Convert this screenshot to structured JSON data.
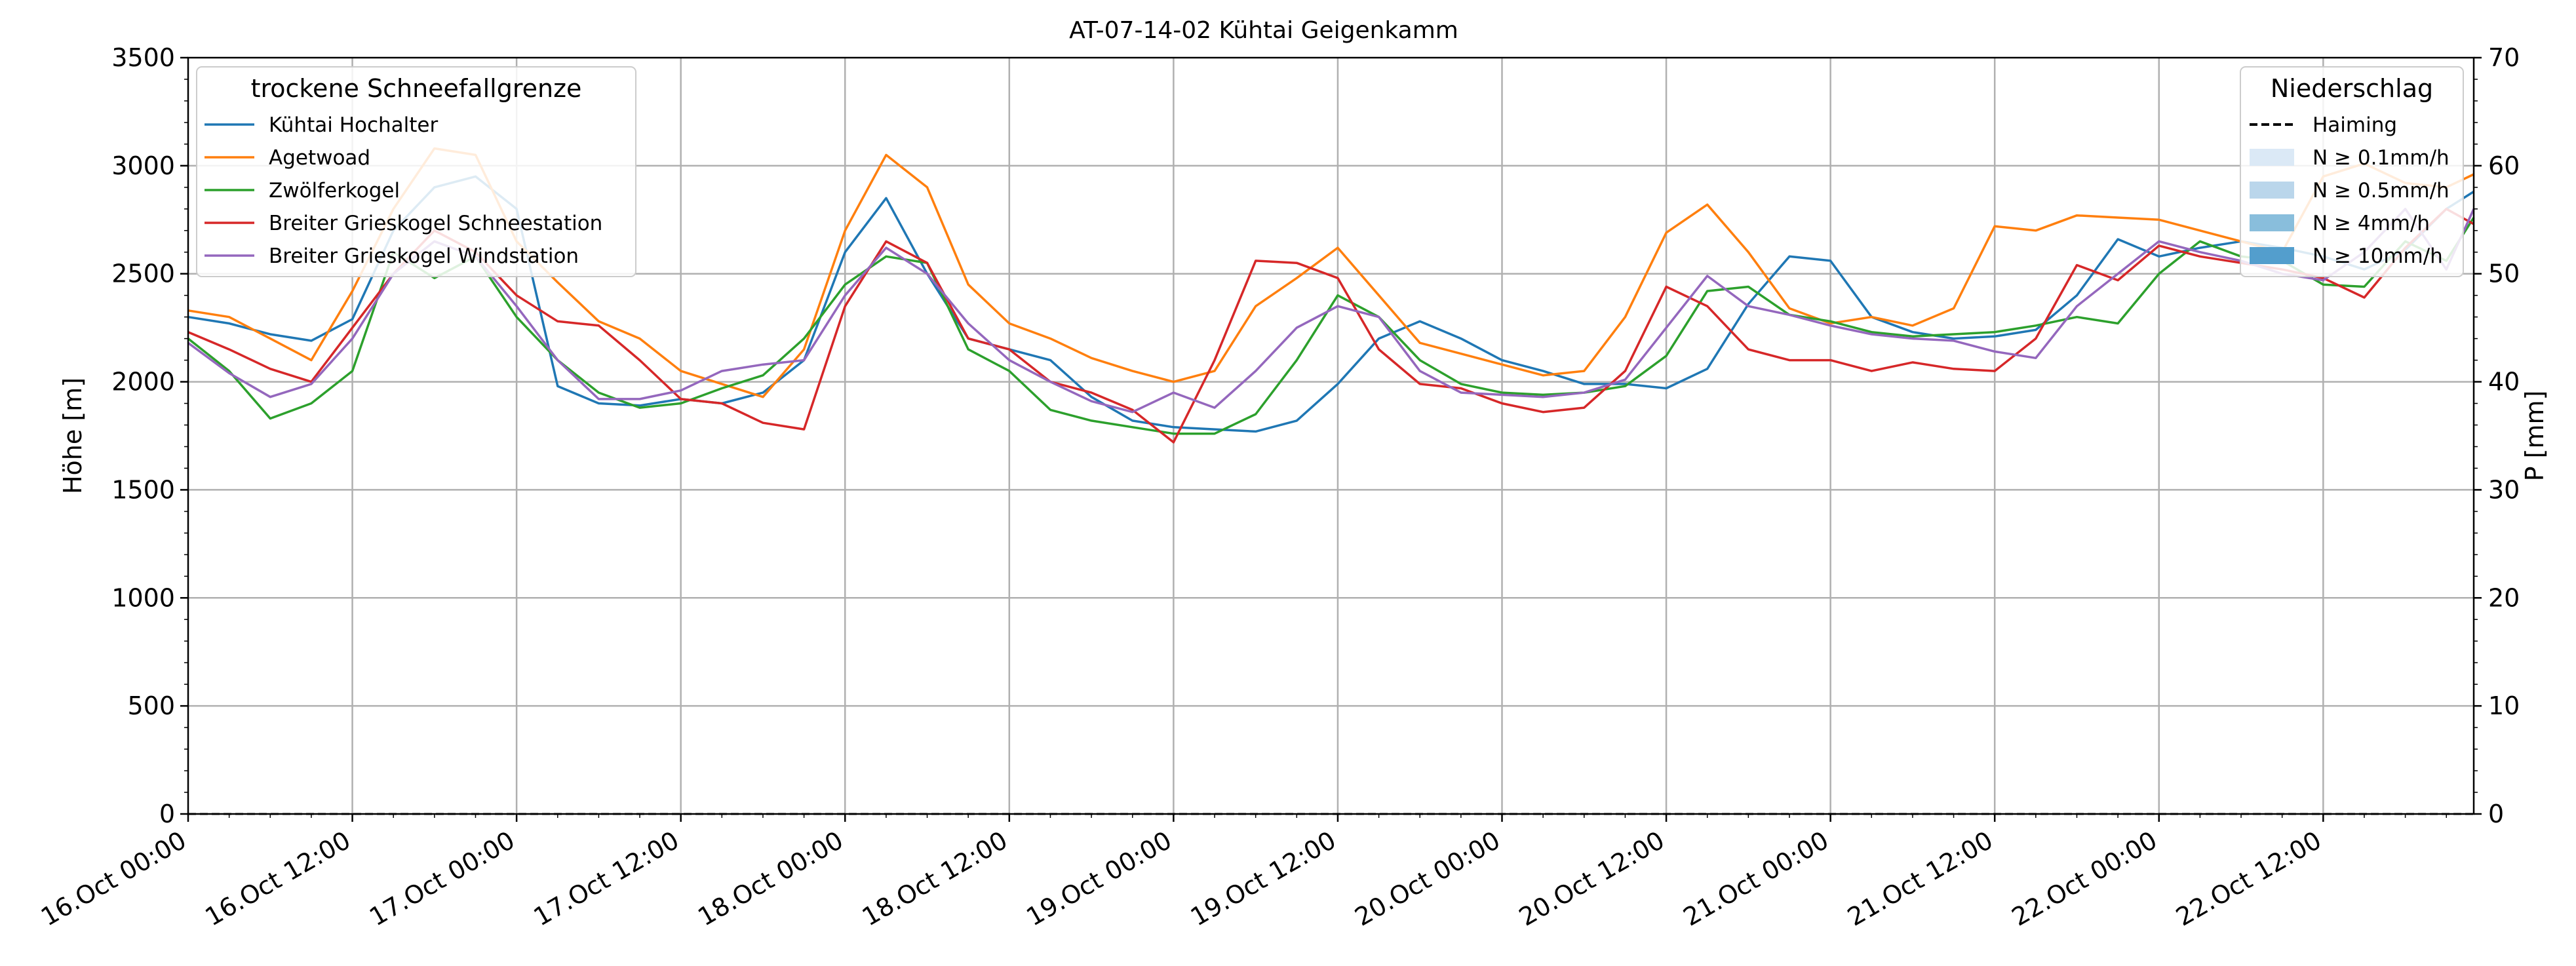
{
  "chart_data": {
    "type": "line",
    "title": "AT-07-14-02 Kühtai Geigenkamm",
    "ylabel": "Höhe [m]",
    "ylabel_right": "P [mm]",
    "ylim": [
      0,
      3500
    ],
    "ylim_right": [
      0,
      70
    ],
    "yticks": [
      "0",
      "500",
      "1000",
      "1500",
      "2000",
      "2500",
      "3000",
      "3500"
    ],
    "yticks_right": [
      "0",
      "10",
      "20",
      "30",
      "40",
      "50",
      "60",
      "70"
    ],
    "xticks": [
      "16.Oct 00:00",
      "16.Oct 12:00",
      "17.Oct 00:00",
      "17.Oct 12:00",
      "18.Oct 00:00",
      "18.Oct 12:00",
      "19.Oct 00:00",
      "19.Oct 12:00",
      "20.Oct 00:00",
      "20.Oct 12:00",
      "21.Oct 00:00",
      "21.Oct 12:00",
      "22.Oct 00:00",
      "22.Oct 12:00"
    ],
    "x_range_hours": [
      0,
      167
    ],
    "grid": true,
    "legend_left": {
      "title": "trockene Schneefallgrenze",
      "placement": "top-left"
    },
    "legend_right": {
      "title": "Niederschlag",
      "placement": "top-right",
      "entries": [
        {
          "label": "Haiming",
          "style": "dashed",
          "color": "#000000"
        },
        {
          "label": "N ≥ 0.1mm/h",
          "color": "#dbe9f6"
        },
        {
          "label": "N ≥ 0.5mm/h",
          "color": "#bad6eb"
        },
        {
          "label": "N ≥ 4mm/h",
          "color": "#89bedc"
        },
        {
          "label": "N ≥ 10mm/h",
          "color": "#539ecd"
        }
      ]
    },
    "precip_haiming_mm": [
      [
        0,
        0
      ],
      [
        167,
        0
      ]
    ],
    "series": [
      {
        "name": "Kühtai Hochalter",
        "color": "#1f77b4",
        "points": [
          [
            0,
            2300
          ],
          [
            3,
            2270
          ],
          [
            6,
            2220
          ],
          [
            9,
            2190
          ],
          [
            12,
            2290
          ],
          [
            15,
            2700
          ],
          [
            18,
            2900
          ],
          [
            21,
            2950
          ],
          [
            24,
            2800
          ],
          [
            27,
            1980
          ],
          [
            30,
            1900
          ],
          [
            33,
            1890
          ],
          [
            36,
            1920
          ],
          [
            39,
            1900
          ],
          [
            42,
            1950
          ],
          [
            45,
            2100
          ],
          [
            48,
            2600
          ],
          [
            51,
            2850
          ],
          [
            54,
            2500
          ],
          [
            57,
            2200
          ],
          [
            60,
            2150
          ],
          [
            63,
            2100
          ],
          [
            66,
            1930
          ],
          [
            69,
            1820
          ],
          [
            72,
            1790
          ],
          [
            75,
            1780
          ],
          [
            78,
            1770
          ],
          [
            81,
            1820
          ],
          [
            84,
            1990
          ],
          [
            87,
            2200
          ],
          [
            90,
            2280
          ],
          [
            93,
            2200
          ],
          [
            96,
            2100
          ],
          [
            99,
            2050
          ],
          [
            102,
            1990
          ],
          [
            105,
            1990
          ],
          [
            108,
            1970
          ],
          [
            111,
            2060
          ],
          [
            114,
            2360
          ],
          [
            117,
            2580
          ],
          [
            120,
            2560
          ],
          [
            123,
            2300
          ],
          [
            126,
            2230
          ],
          [
            129,
            2200
          ],
          [
            132,
            2210
          ],
          [
            135,
            2240
          ],
          [
            138,
            2400
          ],
          [
            141,
            2660
          ],
          [
            144,
            2580
          ],
          [
            147,
            2620
          ],
          [
            150,
            2650
          ],
          [
            153,
            2620
          ],
          [
            156,
            2580
          ],
          [
            159,
            2520
          ],
          [
            162,
            2610
          ],
          [
            165,
            2800
          ],
          [
            167,
            2880
          ]
        ]
      },
      {
        "name": "Agetwoad",
        "color": "#ff7f0e",
        "points": [
          [
            0,
            2330
          ],
          [
            3,
            2300
          ],
          [
            6,
            2200
          ],
          [
            9,
            2100
          ],
          [
            12,
            2420
          ],
          [
            15,
            2800
          ],
          [
            18,
            3080
          ],
          [
            21,
            3050
          ],
          [
            24,
            2650
          ],
          [
            27,
            2460
          ],
          [
            30,
            2280
          ],
          [
            33,
            2200
          ],
          [
            36,
            2050
          ],
          [
            39,
            1990
          ],
          [
            42,
            1930
          ],
          [
            45,
            2150
          ],
          [
            48,
            2700
          ],
          [
            51,
            3050
          ],
          [
            54,
            2900
          ],
          [
            57,
            2450
          ],
          [
            60,
            2270
          ],
          [
            63,
            2200
          ],
          [
            66,
            2110
          ],
          [
            69,
            2050
          ],
          [
            72,
            2000
          ],
          [
            75,
            2050
          ],
          [
            78,
            2350
          ],
          [
            81,
            2480
          ],
          [
            84,
            2620
          ],
          [
            87,
            2400
          ],
          [
            90,
            2180
          ],
          [
            93,
            2130
          ],
          [
            96,
            2080
          ],
          [
            99,
            2030
          ],
          [
            102,
            2050
          ],
          [
            105,
            2300
          ],
          [
            108,
            2690
          ],
          [
            111,
            2820
          ],
          [
            114,
            2600
          ],
          [
            117,
            2340
          ],
          [
            120,
            2270
          ],
          [
            123,
            2300
          ],
          [
            126,
            2260
          ],
          [
            129,
            2340
          ],
          [
            132,
            2720
          ],
          [
            135,
            2700
          ],
          [
            138,
            2770
          ],
          [
            141,
            2760
          ],
          [
            144,
            2750
          ],
          [
            147,
            2700
          ],
          [
            150,
            2650
          ],
          [
            153,
            2600
          ],
          [
            156,
            2950
          ],
          [
            159,
            3010
          ],
          [
            162,
            2920
          ],
          [
            165,
            2900
          ],
          [
            167,
            2960
          ]
        ]
      },
      {
        "name": "Zwölferkogel",
        "color": "#2ca02c",
        "points": [
          [
            0,
            2200
          ],
          [
            3,
            2050
          ],
          [
            6,
            1830
          ],
          [
            9,
            1900
          ],
          [
            12,
            2050
          ],
          [
            15,
            2600
          ],
          [
            18,
            2480
          ],
          [
            21,
            2580
          ],
          [
            24,
            2300
          ],
          [
            27,
            2100
          ],
          [
            30,
            1950
          ],
          [
            33,
            1880
          ],
          [
            36,
            1900
          ],
          [
            39,
            1970
          ],
          [
            42,
            2030
          ],
          [
            45,
            2200
          ],
          [
            48,
            2450
          ],
          [
            51,
            2580
          ],
          [
            54,
            2550
          ],
          [
            57,
            2150
          ],
          [
            60,
            2050
          ],
          [
            63,
            1870
          ],
          [
            66,
            1820
          ],
          [
            69,
            1790
          ],
          [
            72,
            1760
          ],
          [
            75,
            1760
          ],
          [
            78,
            1850
          ],
          [
            81,
            2100
          ],
          [
            84,
            2400
          ],
          [
            87,
            2300
          ],
          [
            90,
            2100
          ],
          [
            93,
            1990
          ],
          [
            96,
            1950
          ],
          [
            99,
            1940
          ],
          [
            102,
            1950
          ],
          [
            105,
            1980
          ],
          [
            108,
            2120
          ],
          [
            111,
            2420
          ],
          [
            114,
            2440
          ],
          [
            117,
            2310
          ],
          [
            120,
            2280
          ],
          [
            123,
            2230
          ],
          [
            126,
            2210
          ],
          [
            129,
            2220
          ],
          [
            132,
            2230
          ],
          [
            135,
            2260
          ],
          [
            138,
            2300
          ],
          [
            141,
            2270
          ],
          [
            144,
            2500
          ],
          [
            147,
            2650
          ],
          [
            150,
            2580
          ],
          [
            153,
            2560
          ],
          [
            156,
            2450
          ],
          [
            159,
            2440
          ],
          [
            162,
            2650
          ],
          [
            165,
            2560
          ],
          [
            167,
            2760
          ]
        ]
      },
      {
        "name": "Breiter Grieskogel Schneestation",
        "color": "#d62728",
        "points": [
          [
            0,
            2230
          ],
          [
            3,
            2150
          ],
          [
            6,
            2060
          ],
          [
            9,
            2000
          ],
          [
            12,
            2250
          ],
          [
            15,
            2500
          ],
          [
            18,
            2700
          ],
          [
            21,
            2600
          ],
          [
            24,
            2400
          ],
          [
            27,
            2280
          ],
          [
            30,
            2260
          ],
          [
            33,
            2100
          ],
          [
            36,
            1920
          ],
          [
            39,
            1900
          ],
          [
            42,
            1810
          ],
          [
            45,
            1780
          ],
          [
            48,
            2350
          ],
          [
            51,
            2650
          ],
          [
            54,
            2550
          ],
          [
            57,
            2200
          ],
          [
            60,
            2150
          ],
          [
            63,
            2000
          ],
          [
            66,
            1950
          ],
          [
            69,
            1870
          ],
          [
            72,
            1720
          ],
          [
            75,
            2100
          ],
          [
            78,
            2560
          ],
          [
            81,
            2550
          ],
          [
            84,
            2480
          ],
          [
            87,
            2150
          ],
          [
            90,
            1990
          ],
          [
            93,
            1970
          ],
          [
            96,
            1900
          ],
          [
            99,
            1860
          ],
          [
            102,
            1880
          ],
          [
            105,
            2050
          ],
          [
            108,
            2440
          ],
          [
            111,
            2350
          ],
          [
            114,
            2150
          ],
          [
            117,
            2100
          ],
          [
            120,
            2100
          ],
          [
            123,
            2050
          ],
          [
            126,
            2090
          ],
          [
            129,
            2060
          ],
          [
            132,
            2050
          ],
          [
            135,
            2200
          ],
          [
            138,
            2540
          ],
          [
            141,
            2470
          ],
          [
            144,
            2630
          ],
          [
            147,
            2580
          ],
          [
            150,
            2550
          ],
          [
            153,
            2520
          ],
          [
            156,
            2480
          ],
          [
            159,
            2390
          ],
          [
            162,
            2620
          ],
          [
            165,
            2800
          ],
          [
            167,
            2730
          ]
        ]
      },
      {
        "name": "Breiter Grieskogel Windstation",
        "color": "#9467bd",
        "points": [
          [
            0,
            2180
          ],
          [
            3,
            2040
          ],
          [
            6,
            1930
          ],
          [
            9,
            1990
          ],
          [
            12,
            2200
          ],
          [
            15,
            2500
          ],
          [
            18,
            2650
          ],
          [
            21,
            2580
          ],
          [
            24,
            2350
          ],
          [
            27,
            2100
          ],
          [
            30,
            1920
          ],
          [
            33,
            1920
          ],
          [
            36,
            1960
          ],
          [
            39,
            2050
          ],
          [
            42,
            2080
          ],
          [
            45,
            2100
          ],
          [
            48,
            2400
          ],
          [
            51,
            2620
          ],
          [
            54,
            2500
          ],
          [
            57,
            2270
          ],
          [
            60,
            2100
          ],
          [
            63,
            2000
          ],
          [
            66,
            1910
          ],
          [
            69,
            1860
          ],
          [
            72,
            1950
          ],
          [
            75,
            1880
          ],
          [
            78,
            2050
          ],
          [
            81,
            2250
          ],
          [
            84,
            2350
          ],
          [
            87,
            2300
          ],
          [
            90,
            2050
          ],
          [
            93,
            1950
          ],
          [
            96,
            1940
          ],
          [
            99,
            1930
          ],
          [
            102,
            1950
          ],
          [
            105,
            2010
          ],
          [
            108,
            2250
          ],
          [
            111,
            2490
          ],
          [
            114,
            2350
          ],
          [
            117,
            2310
          ],
          [
            120,
            2260
          ],
          [
            123,
            2220
          ],
          [
            126,
            2200
          ],
          [
            129,
            2190
          ],
          [
            132,
            2140
          ],
          [
            135,
            2110
          ],
          [
            138,
            2350
          ],
          [
            141,
            2500
          ],
          [
            144,
            2650
          ],
          [
            147,
            2600
          ],
          [
            150,
            2560
          ],
          [
            153,
            2500
          ],
          [
            156,
            2470
          ],
          [
            159,
            2600
          ],
          [
            162,
            2800
          ],
          [
            165,
            2520
          ],
          [
            167,
            2800
          ]
        ]
      }
    ]
  }
}
